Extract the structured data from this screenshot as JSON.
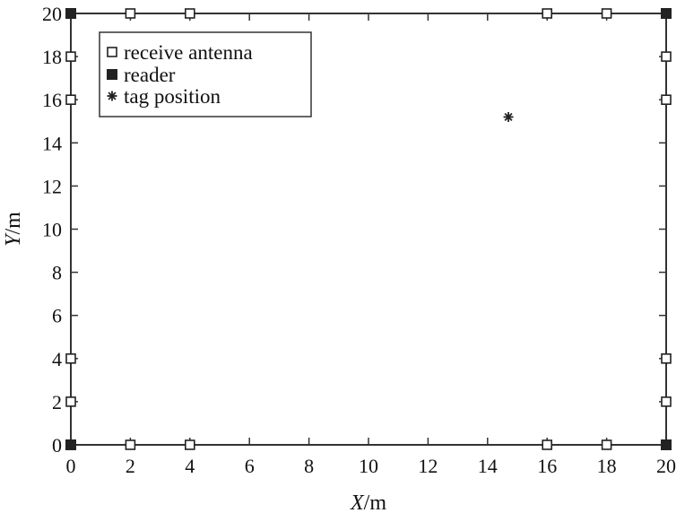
{
  "chart_data": {
    "type": "scatter",
    "xlim": [
      0,
      20
    ],
    "ylim": [
      0,
      20
    ],
    "xticks": [
      "0",
      "2",
      "4",
      "6",
      "8",
      "10",
      "12",
      "14",
      "16",
      "18",
      "20"
    ],
    "yticks": [
      "0",
      "2",
      "4",
      "6",
      "8",
      "10",
      "12",
      "14",
      "16",
      "18",
      "20"
    ],
    "xlabel": {
      "italic": "X",
      "unit": "/m"
    },
    "ylabel": {
      "italic": "Y",
      "unit": "/m"
    },
    "grid": false,
    "legend_position": "top-left",
    "series": [
      {
        "name": "receive antenna",
        "marker": "square-open",
        "points": [
          [
            2,
            20
          ],
          [
            4,
            20
          ],
          [
            16,
            20
          ],
          [
            18,
            20
          ],
          [
            0,
            18
          ],
          [
            0,
            16
          ],
          [
            0,
            4
          ],
          [
            0,
            2
          ],
          [
            20,
            18
          ],
          [
            20,
            16
          ],
          [
            20,
            4
          ],
          [
            20,
            2
          ],
          [
            2,
            0
          ],
          [
            4,
            0
          ],
          [
            16,
            0
          ],
          [
            18,
            0
          ]
        ]
      },
      {
        "name": "reader",
        "marker": "square-filled",
        "points": [
          [
            0,
            0
          ],
          [
            0,
            20
          ],
          [
            20,
            0
          ],
          [
            20,
            20
          ]
        ]
      },
      {
        "name": "tag position",
        "marker": "asterisk",
        "points": [
          [
            14.7,
            15.2
          ]
        ]
      }
    ]
  }
}
